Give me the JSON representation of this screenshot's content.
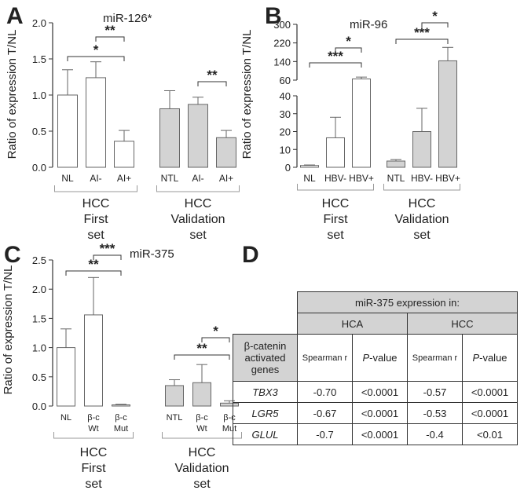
{
  "panels": {
    "A": {
      "letter": "A",
      "title": "miR-126*"
    },
    "B": {
      "letter": "B",
      "title": "miR-96"
    },
    "C": {
      "letter": "C",
      "title": "miR-375"
    },
    "D": {
      "letter": "D"
    }
  },
  "chart_data": [
    {
      "type": "bar",
      "title": "miR-126*",
      "ylabel": "Ratio of expression T/NL",
      "ylim": [
        0,
        2.0
      ],
      "yticks": [
        "0.0",
        "0.5",
        "1.0",
        "1.5",
        "2.0"
      ],
      "categories": [
        "NL",
        "AI-",
        "AI+",
        "NTL",
        "AI-",
        "AI+"
      ],
      "values": [
        1.0,
        1.24,
        0.36,
        0.81,
        0.87,
        0.41
      ],
      "errors": [
        0.35,
        0.22,
        0.15,
        0.25,
        0.1,
        0.1
      ],
      "fills": [
        "#ffffff",
        "#ffffff",
        "#ffffff",
        "#d3d3d3",
        "#d3d3d3",
        "#d3d3d3"
      ],
      "groups": [
        {
          "label": [
            "HCC",
            "First",
            "set"
          ],
          "from": 0,
          "to": 2
        },
        {
          "label": [
            "HCC",
            "Validation",
            "set"
          ],
          "from": 3,
          "to": 5
        }
      ],
      "significance": [
        {
          "label": "*",
          "from": 0,
          "to": 2
        },
        {
          "label": "**",
          "from": 1,
          "to": 2
        },
        {
          "label": "**",
          "from": 4,
          "to": 5
        }
      ]
    },
    {
      "type": "bar",
      "title": "miR-96",
      "ylabel": "Ratio of expression T/NL",
      "broken_axis": true,
      "ylim_lower": [
        0,
        40
      ],
      "ylim_upper": [
        60,
        300
      ],
      "yticks_lower": [
        "0",
        "10",
        "20",
        "30",
        "40"
      ],
      "yticks_upper": [
        "60",
        "140",
        "220",
        "300"
      ],
      "categories": [
        "NL",
        "HBV-",
        "HBV+",
        "NTL",
        "HBV-",
        "HBV+"
      ],
      "values": [
        1.0,
        16.5,
        65,
        3.5,
        20,
        143
      ],
      "errors": [
        0.3,
        11.5,
        8,
        0.8,
        13,
        58
      ],
      "fills": [
        "#ffffff",
        "#ffffff",
        "#ffffff",
        "#d3d3d3",
        "#d3d3d3",
        "#d3d3d3"
      ],
      "groups": [
        {
          "label": [
            "HCC",
            "First",
            "set"
          ],
          "from": 0,
          "to": 2
        },
        {
          "label": [
            "HCC",
            "Validation",
            "set"
          ],
          "from": 3,
          "to": 5
        }
      ],
      "significance": [
        {
          "label": "***",
          "from": 0,
          "to": 2
        },
        {
          "label": "*",
          "from": 1,
          "to": 2
        },
        {
          "label": "***",
          "from": 3,
          "to": 5
        },
        {
          "label": "*",
          "from": 4,
          "to": 5
        }
      ]
    },
    {
      "type": "bar",
      "title": "miR-375",
      "ylabel": "Ratio of expression T/NL",
      "ylim": [
        0,
        2.5
      ],
      "yticks": [
        "0.0",
        "0.5",
        "1.0",
        "1.5",
        "2.0",
        "2.5"
      ],
      "categories": [
        [
          "NL"
        ],
        [
          "β-c",
          "Wt"
        ],
        [
          "β-c",
          "Mut"
        ],
        [
          "NTL"
        ],
        [
          "β-c",
          "Wt"
        ],
        [
          "β-c",
          "Mut"
        ]
      ],
      "values": [
        1.0,
        1.56,
        0.02,
        0.35,
        0.4,
        0.05
      ],
      "errors": [
        0.32,
        0.64,
        0.01,
        0.1,
        0.31,
        0.04
      ],
      "fills": [
        "#ffffff",
        "#ffffff",
        "#ffffff",
        "#d3d3d3",
        "#d3d3d3",
        "#d3d3d3"
      ],
      "groups": [
        {
          "label": [
            "HCC",
            "First",
            "set"
          ],
          "from": 0,
          "to": 2
        },
        {
          "label": [
            "HCC",
            "Validation",
            "set"
          ],
          "from": 3,
          "to": 5
        }
      ],
      "significance": [
        {
          "label": "**",
          "from": 0,
          "to": 2
        },
        {
          "label": "***",
          "from": 1,
          "to": 2
        },
        {
          "label": "**",
          "from": 3,
          "to": 5
        },
        {
          "label": "*",
          "from": 4,
          "to": 5
        }
      ]
    },
    {
      "type": "table",
      "header": "miR-375 expression in:",
      "row_header": [
        "β-catenin",
        "activated",
        "genes"
      ],
      "groups": [
        "HCA",
        "HCC"
      ],
      "columns": [
        {
          "text": "Spearman r"
        },
        {
          "prefix": "P",
          "text": "-value"
        },
        {
          "text": "Spearman r"
        },
        {
          "prefix": "P",
          "text": "-value"
        }
      ],
      "rows": [
        {
          "gene": "TBX3",
          "values": [
            "-0.70",
            "<0.0001",
            "-0.57",
            "<0.0001"
          ]
        },
        {
          "gene": "LGR5",
          "values": [
            "-0.67",
            "<0.0001",
            "-0.53",
            "<0.0001"
          ]
        },
        {
          "gene": "GLUL",
          "values": [
            "-0.7",
            "<0.0001",
            "-0.4",
            "<0.01"
          ]
        }
      ]
    }
  ]
}
